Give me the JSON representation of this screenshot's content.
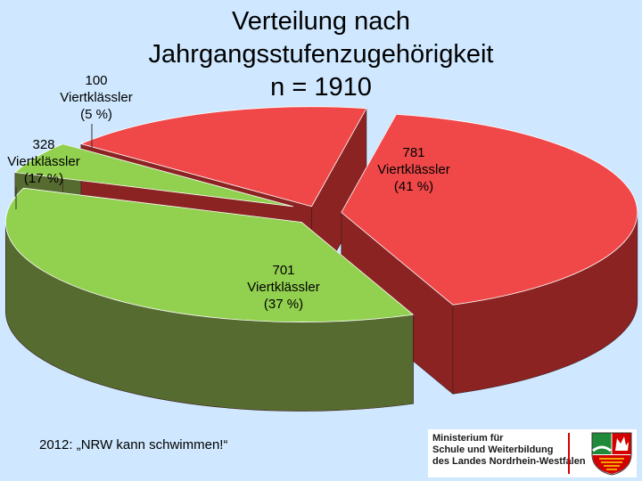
{
  "chart_data": {
    "type": "pie",
    "title_lines": [
      "Verteilung nach",
      "Jahrgangsstufenzugehörigkeit",
      "n = 1910"
    ],
    "slices": [
      {
        "value": 100,
        "label_lines": [
          "100",
          "Viertklässler",
          "(5 %)"
        ],
        "color": "#92d050",
        "side": "#556b2f"
      },
      {
        "value": 328,
        "label_lines": [
          "328",
          "Viertklässler",
          "(17 %)"
        ],
        "color": "#f04848",
        "side": "#8b2323"
      },
      {
        "value": 781,
        "label_lines": [
          "781",
          "Viertklässler",
          "(41 %)"
        ],
        "color": "#f04848",
        "side": "#8b2323"
      },
      {
        "value": 701,
        "label_lines": [
          "701",
          "Viertklässler",
          "(37 %)"
        ],
        "color": "#92d050",
        "side": "#556b2f"
      }
    ]
  },
  "footer": "2012: „NRW kann schwimmen!“",
  "logo": {
    "lines": [
      "Ministerium für",
      "Schule und Weiterbildung",
      "des Landes Nordrhein-Westfalen"
    ]
  }
}
